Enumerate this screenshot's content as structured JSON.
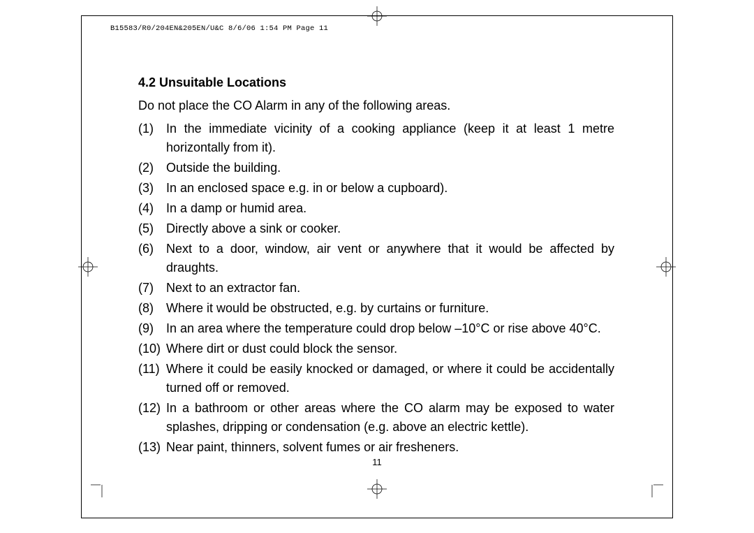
{
  "header": "B15583/R0/204EN&205EN/U&C  8/6/06  1:54 PM  Page 11",
  "heading": "4.2 Unsuitable Locations",
  "intro": "Do not place the CO Alarm in any of the following areas.",
  "items": [
    {
      "num": "(1)",
      "text": "In the immediate vicinity of a cooking appliance (keep it at least 1 metre horizontally from it).",
      "justify": true
    },
    {
      "num": "(2)",
      "text": "Outside the building.",
      "justify": false
    },
    {
      "num": "(3)",
      "text": "In an enclosed space e.g. in or below a cupboard).",
      "justify": false
    },
    {
      "num": "(4)",
      "text": "In a damp or humid area.",
      "justify": false
    },
    {
      "num": "(5)",
      "text": "Directly above a sink or cooker.",
      "justify": false
    },
    {
      "num": "(6)",
      "text": "Next to a door, window, air vent or anywhere that it would be affected by draughts.",
      "justify": true
    },
    {
      "num": "(7)",
      "text": "Next to an extractor fan.",
      "justify": false
    },
    {
      "num": "(8)",
      "text": "Where it would be obstructed, e.g. by curtains or furniture.",
      "justify": false
    },
    {
      "num": "(9)",
      "text": "In an area where the temperature could drop below –10°C or rise above 40°C.",
      "justify": false
    },
    {
      "num": "(10)",
      "text": "Where dirt or dust could block the sensor.",
      "justify": false
    },
    {
      "num": "(11)",
      "text": "Where it could be easily  knocked or damaged, or where it could be accidentally turned off or removed.",
      "justify": true
    },
    {
      "num": "(12)",
      "text": "In a bathroom or other areas where the CO alarm may be exposed to water splashes, dripping  or condensation (e.g. above an electric kettle).",
      "justify": true
    },
    {
      "num": "(13)",
      "text": "Near paint, thinners, solvent fumes or air fresheners.",
      "justify": false
    }
  ],
  "page_number": "11"
}
